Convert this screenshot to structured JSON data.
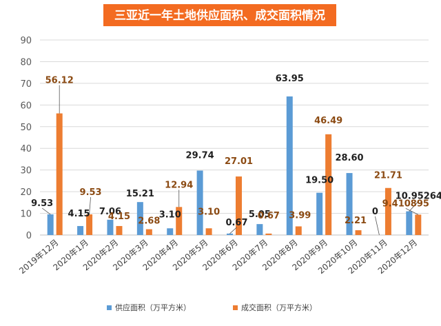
{
  "chart_data": {
    "type": "bar",
    "title": "三亚近一年土地供应面积、成交面积情况",
    "categories": [
      "2019年12月",
      "2020年1月",
      "2020年2月",
      "2020年3月",
      "2020年4月",
      "2020年5月",
      "2020年6月",
      "2020年7月",
      "2020年8月",
      "2020年9月",
      "2020年10月",
      "2020年11月",
      "2020年12月"
    ],
    "series": [
      {
        "name": "供应面积（万平方米）",
        "color": "#5b9bd5",
        "values": [
          9.53,
          4.15,
          7.06,
          15.21,
          3.1,
          29.74,
          0.67,
          5.05,
          63.95,
          19.5,
          28.6,
          0,
          10.95
        ],
        "labels": [
          "9.53",
          "4.15",
          "7.06",
          "15.21",
          "3.10",
          "29.74",
          "0.67",
          "5.05",
          "63.95",
          "19.50",
          "28.60",
          "0",
          "10.95264"
        ]
      },
      {
        "name": "成交面积（万平方米）",
        "color": "#ed7d31",
        "values": [
          56.12,
          9.53,
          4.15,
          2.68,
          12.94,
          3.1,
          27.01,
          0.67,
          3.99,
          46.49,
          2.21,
          21.71,
          9.41
        ],
        "labels": [
          "56.12",
          "9.53",
          "4.15",
          "2.68",
          "12.94",
          "3.10",
          "27.01",
          "0.67",
          "3.99",
          "46.49",
          "2.21",
          "21.71",
          "9.410895"
        ]
      }
    ],
    "yticks": [
      0,
      10,
      20,
      30,
      40,
      50,
      60,
      70,
      80,
      90
    ],
    "ylim": [
      0,
      90
    ],
    "xlabel": "",
    "ylabel": "",
    "grid": true,
    "legend": "bottom"
  }
}
